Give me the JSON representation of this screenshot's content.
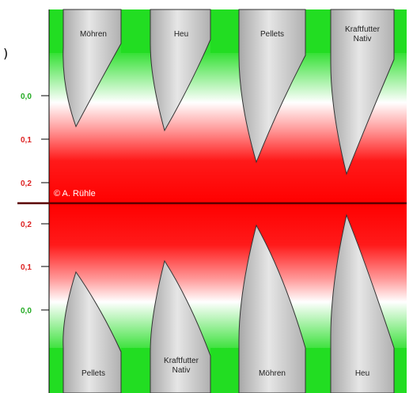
{
  "corner_mark": ")",
  "copyright": "© A. Rühle",
  "colors": {
    "green": "#22dd22",
    "red": "#ff1a1a",
    "tooth_fill": "#c9c9c9",
    "tooth_stroke": "#333333",
    "axis_green_label": "#22aa22",
    "axis_red_label": "#dd2222",
    "center_line": "#5a0000"
  },
  "upper_axis": {
    "ticks": [
      {
        "label": "0,0",
        "tone": "green"
      },
      {
        "label": "0,1",
        "tone": "red"
      },
      {
        "label": "0,2",
        "tone": "red"
      }
    ]
  },
  "lower_axis": {
    "ticks": [
      {
        "label": "0,2",
        "tone": "red"
      },
      {
        "label": "0,1",
        "tone": "red"
      },
      {
        "label": "0,0",
        "tone": "green"
      }
    ]
  },
  "upper_teeth": [
    {
      "label": "Möhren"
    },
    {
      "label": "Heu"
    },
    {
      "label": "Pellets"
    },
    {
      "label": "Kraftfutter Nativ"
    }
  ],
  "lower_teeth": [
    {
      "label": "Pellets"
    },
    {
      "label": "Kraftfutter Nativ"
    },
    {
      "label": "Möhren"
    },
    {
      "label": "Heu"
    }
  ]
}
